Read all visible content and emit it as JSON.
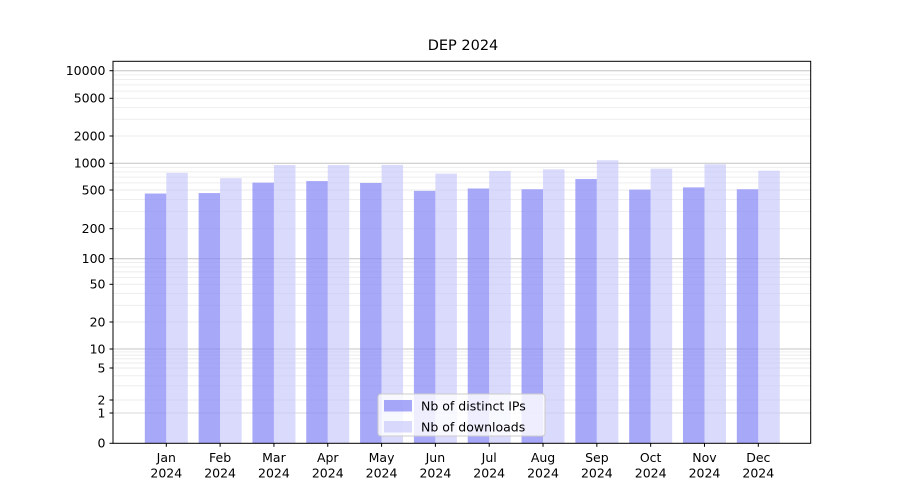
{
  "page": {
    "background": "#ffffff"
  },
  "chart_data": {
    "type": "bar",
    "title": "DEP 2024",
    "xlabel": "",
    "ylabel": "",
    "scale": "symlog",
    "grid": true,
    "legend_position": "lower center",
    "categories": [
      "Jan",
      "Feb",
      "Mar",
      "Apr",
      "May",
      "Jun",
      "Jul",
      "Aug",
      "Sep",
      "Oct",
      "Nov",
      "Dec"
    ],
    "category_year": "2024",
    "yticks": [
      0,
      1,
      2,
      5,
      10,
      20,
      50,
      100,
      200,
      500,
      1000,
      2000,
      5000,
      10000
    ],
    "ylim": [
      0,
      12600
    ],
    "series": [
      {
        "name": "Nb of distinct IPs",
        "color": "#8686f7",
        "color_css": "rgba(134,134,247,0.72)",
        "values": [
          460,
          465,
          605,
          630,
          600,
          490,
          520,
          510,
          665,
          505,
          535,
          510
        ]
      },
      {
        "name": "Nb of downloads",
        "color": "#c6c6fa",
        "color_css": "rgba(198,198,250,0.65)",
        "values": [
          780,
          680,
          955,
          955,
          960,
          765,
          820,
          855,
          1080,
          870,
          975,
          825
        ]
      }
    ],
    "colors": {
      "grid_major": "#c4c4c4",
      "grid_minor": "#ebebeb",
      "grid_unit": "#d9d9d9",
      "spine": "#000000",
      "legend_border": "#cccccc",
      "legend_bg": "rgba(255,255,255,0.8)"
    }
  }
}
